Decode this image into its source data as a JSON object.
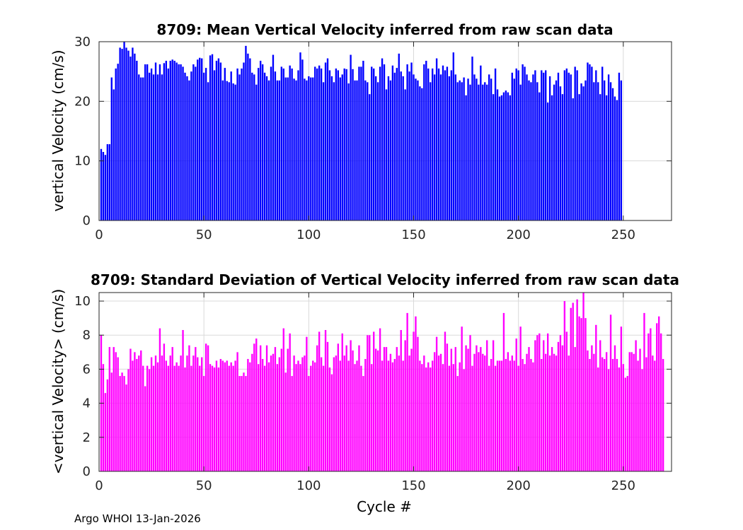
{
  "figure": {
    "footer": "Argo WHOI 13-Jan-2026",
    "shared_xlabel": "Cycle #"
  },
  "chart_data": [
    {
      "type": "bar",
      "title": "8709: Mean Vertical Velocity inferred from raw scan data",
      "xlabel": "",
      "ylabel": "vertical Velocity (cm/s)",
      "xlim": [
        0,
        273
      ],
      "ylim": [
        0,
        30
      ],
      "xticks": [
        0,
        50,
        100,
        150,
        200,
        250
      ],
      "yticks": [
        0,
        10,
        20,
        30
      ],
      "grid": true,
      "color": "#0000ff",
      "x_start": 1,
      "values": [
        12,
        11.5,
        11,
        12.8,
        12.8,
        24,
        22,
        25.5,
        26.3,
        29,
        28.8,
        30,
        29,
        28.5,
        27.5,
        29,
        28,
        26.8,
        24.5,
        24,
        24,
        26.2,
        26.2,
        24.8,
        25.5,
        24.5,
        26.5,
        24.5,
        26.2,
        24.5,
        26.4,
        26.8,
        25.5,
        26.8,
        27,
        26.8,
        26.5,
        26.2,
        26.2,
        25.8,
        24.8,
        24.2,
        23.5,
        25,
        26.2,
        25.8,
        27,
        27.3,
        27.2,
        24.8,
        25.6,
        23.2,
        27.7,
        27.9,
        25.2,
        26.8,
        27.2,
        26.5,
        23.5,
        25.6,
        23.4,
        23.2,
        25,
        23,
        22.8,
        25.5,
        24.5,
        25.5,
        26.5,
        29.3,
        28,
        27.2,
        24.8,
        24.5,
        22.8,
        25.6,
        26.8,
        26.2,
        24.8,
        24.2,
        23.5,
        25.8,
        27.8,
        25,
        23.5,
        23.5,
        25.8,
        25.5,
        24,
        24,
        26,
        25.5,
        23.8,
        23.5,
        25.2,
        28.2,
        27,
        23.8,
        23.5,
        24.2,
        24,
        24,
        25.8,
        25.5,
        26,
        25.5,
        23.2,
        26.5,
        27.2,
        25.2,
        24.2,
        23.2,
        25.5,
        25.2,
        24,
        24.5,
        25.5,
        25.4,
        23,
        27.8,
        25.4,
        23.5,
        23.5,
        25.8,
        25.8,
        26.8,
        23.5,
        23.2,
        21.2,
        25.8,
        25.5,
        24.2,
        23.2,
        25.8,
        27.2,
        26.2,
        22,
        24.2,
        23.5,
        26,
        24.8,
        25.6,
        28,
        25,
        24.2,
        22,
        26.2,
        25,
        26.5,
        24.5,
        23.8,
        23.5,
        22.5,
        22.2,
        26.2,
        26.8,
        25.5,
        23.2,
        25.5,
        24.5,
        27.2,
        25.5,
        24.5,
        26,
        25.2,
        25.8,
        24.2,
        25.2,
        28.2,
        24.5,
        23.2,
        23.5,
        23.2,
        24,
        21,
        23.8,
        22.8,
        27.5,
        24.5,
        23.8,
        22.8,
        26,
        22.8,
        23.2,
        22.8,
        24.5,
        23.8,
        21.2,
        25.5,
        22,
        20.8,
        21,
        21.5,
        21.8,
        21.5,
        21,
        24.8,
        23.8,
        25.5,
        25.2,
        22.8,
        26.2,
        25.8,
        24.5,
        23.5,
        23.2,
        24.5,
        25.2,
        23.2,
        21.5,
        25.2,
        24.8,
        25.2,
        19.8,
        24.2,
        21,
        22.8,
        23.5,
        24.8,
        22.5,
        21.2,
        25.2,
        25.5,
        24.8,
        24.5,
        20.5,
        25.8,
        25.2,
        21.2,
        23,
        22.5,
        23.5,
        26.5,
        26.2,
        25.8,
        23.2,
        25.2,
        23.2,
        21.2,
        25.8,
        23.5,
        21,
        24.5,
        23.2,
        22.2,
        20.8,
        20.2,
        24.8,
        23.5
      ]
    },
    {
      "type": "bar",
      "title": "8709: Standard Deviation of Vertical Velocity inferred from raw scan data",
      "xlabel": "Cycle #",
      "ylabel": "<vertical Velocity> (cm/s)",
      "xlim": [
        0,
        273
      ],
      "ylim": [
        0,
        10.5
      ],
      "xticks": [
        0,
        50,
        100,
        150,
        200,
        250
      ],
      "yticks": [
        0,
        2,
        4,
        6,
        8,
        10
      ],
      "grid": true,
      "color": "#ff00ff",
      "x_start": 1,
      "values": [
        8,
        6.3,
        4.6,
        5.4,
        7.3,
        5.8,
        7.3,
        7,
        6.7,
        5.6,
        5.8,
        5.6,
        5.1,
        6,
        7.2,
        6.5,
        7,
        6.6,
        6.8,
        7.1,
        6.2,
        5,
        6.2,
        6,
        6.7,
        6.2,
        6.8,
        6.4,
        8.4,
        6.8,
        7.5,
        6.5,
        6.2,
        6.8,
        7.3,
        6.2,
        6.4,
        6.2,
        6.8,
        8.3,
        6.1,
        6.8,
        7.4,
        6.2,
        6.8,
        7.3,
        6.7,
        6.2,
        6.7,
        5.6,
        7.5,
        7.4,
        6.3,
        6.2,
        6.1,
        6.5,
        6.1,
        6.6,
        6.5,
        6.4,
        6.5,
        6.2,
        6.4,
        6.2,
        6.5,
        7,
        5.6,
        5.6,
        5.8,
        5.6,
        6.6,
        6.4,
        6.9,
        7.5,
        7.8,
        6.3,
        7.4,
        6.6,
        6.2,
        7.4,
        6.4,
        6.8,
        6.9,
        7.3,
        6.3,
        6.7,
        7.2,
        8.4,
        5.8,
        7.2,
        8.1,
        5.6,
        6.8,
        6.3,
        6.5,
        6.3,
        6.7,
        6.8,
        7.9,
        5.6,
        6.2,
        6.5,
        6.4,
        7.4,
        8.2,
        6.7,
        6.2,
        8.3,
        7.6,
        6.1,
        5.7,
        6.7,
        6.8,
        7.5,
        6.5,
        8.1,
        6.8,
        7.4,
        6.5,
        7.7,
        7.1,
        6.3,
        6.5,
        7.4,
        6.2,
        5.6,
        6.6,
        8,
        8,
        6.3,
        8.2,
        7.2,
        7.1,
        8.4,
        6.5,
        7.3,
        7.3,
        6.5,
        6.9,
        6.4,
        6.6,
        7.3,
        6.8,
        8.3,
        6.5,
        7.7,
        9.3,
        6.8,
        7.2,
        8.2,
        9.1,
        7.9,
        6.5,
        6.3,
        6.8,
        6.1,
        6.4,
        6.1,
        6.5,
        7,
        7.9,
        6.8,
        6.9,
        6.3,
        8.2,
        7.5,
        6.2,
        7.2,
        6.3,
        7.3,
        5.6,
        6.4,
        8.5,
        6,
        7.4,
        7.2,
        8,
        6.2,
        6.9,
        7.4,
        7,
        7.3,
        6.9,
        6.8,
        7.7,
        6.2,
        6.6,
        7.7,
        6.2,
        6.5,
        6.5,
        6.5,
        9.3,
        6.6,
        7,
        6.5,
        6.8,
        6.5,
        7.8,
        6.2,
        8.5,
        6.6,
        6.3,
        6.9,
        7.3,
        6.6,
        6.4,
        7.7,
        8,
        8.1,
        6.6,
        7.7,
        6.9,
        8.1,
        6.8,
        7.3,
        6.9,
        6.8,
        7.6,
        8,
        7.4,
        10,
        8.2,
        6.8,
        9.6,
        9.9,
        7.3,
        10.1,
        9.1,
        9,
        10.5,
        9,
        7.1,
        6.6,
        7.4,
        6.9,
        8.6,
        6.1,
        7.7,
        6.7,
        6.6,
        7,
        6,
        9.2,
        6.6,
        7.4,
        6.6,
        6.1,
        8.5,
        6.3,
        5.5,
        5.6,
        7,
        7,
        6.9,
        7.7,
        6.5,
        7.2,
        6,
        9.3,
        6.7,
        8.1,
        8.4,
        6.8,
        6.5,
        8.7,
        9.1,
        8.1,
        6.6
      ]
    }
  ]
}
